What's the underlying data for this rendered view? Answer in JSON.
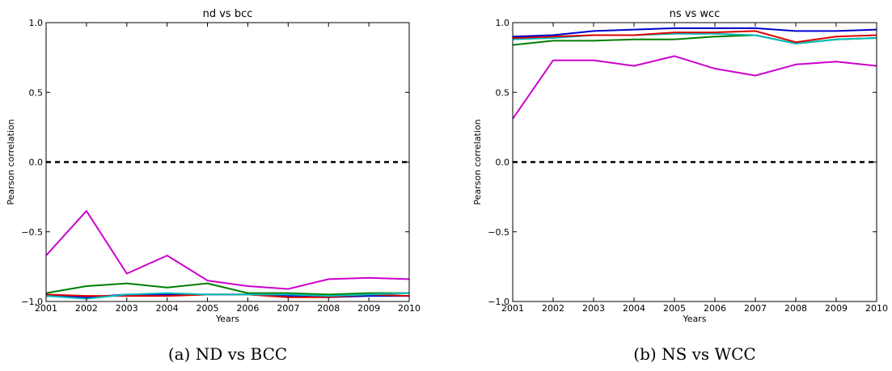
{
  "chart_data": [
    {
      "type": "line",
      "title": "nd vs bcc",
      "xlabel": "Years",
      "ylabel": "Pearson correlation",
      "caption": "(a) ND vs BCC",
      "x": [
        2001,
        2002,
        2003,
        2004,
        2005,
        2006,
        2007,
        2008,
        2009,
        2010
      ],
      "xlim": [
        2001,
        2010
      ],
      "ylim": [
        -1.0,
        1.0
      ],
      "yticks": [
        "1.0",
        "0.5",
        "0.0",
        "−0.5",
        "−1.0"
      ],
      "ytick_values": [
        1.0,
        0.5,
        0.0,
        -0.5,
        -1.0
      ],
      "reference_line": {
        "y": 0.0,
        "style": "dashed",
        "color": "#000000"
      },
      "series": [
        {
          "color": "#cc00cc",
          "values": [
            -0.67,
            -0.35,
            -0.8,
            -0.67,
            -0.85,
            -0.89,
            -0.91,
            -0.84,
            -0.83,
            -0.84
          ]
        },
        {
          "color": "#007f00",
          "values": [
            -0.94,
            -0.89,
            -0.87,
            -0.9,
            -0.87,
            -0.94,
            -0.94,
            -0.95,
            -0.94,
            -0.94
          ]
        },
        {
          "color": "#0000cc",
          "values": [
            -0.96,
            -0.97,
            -0.95,
            -0.95,
            -0.95,
            -0.95,
            -0.96,
            -0.97,
            -0.96,
            -0.96
          ]
        },
        {
          "color": "#dd0000",
          "values": [
            -0.95,
            -0.96,
            -0.96,
            -0.96,
            -0.95,
            -0.95,
            -0.97,
            -0.97,
            -0.95,
            -0.96
          ]
        },
        {
          "color": "#00bbbb",
          "values": [
            -0.96,
            -0.98,
            -0.95,
            -0.94,
            -0.95,
            -0.95,
            -0.95,
            -0.96,
            -0.95,
            -0.94
          ]
        }
      ]
    },
    {
      "type": "line",
      "title": "ns vs wcc",
      "xlabel": "Years",
      "ylabel": "Pearson correlation",
      "caption": "(b) NS vs WCC",
      "x": [
        2001,
        2002,
        2003,
        2004,
        2005,
        2006,
        2007,
        2008,
        2009,
        2010
      ],
      "xlim": [
        2001,
        2010
      ],
      "ylim": [
        -1.0,
        1.0
      ],
      "yticks": [
        "1.0",
        "0.5",
        "0.0",
        "−0.5",
        "−1.0"
      ],
      "ytick_values": [
        1.0,
        0.5,
        0.0,
        -0.5,
        -1.0
      ],
      "reference_line": {
        "y": 0.0,
        "style": "dashed",
        "color": "#000000"
      },
      "series": [
        {
          "color": "#cc00cc",
          "values": [
            0.31,
            0.73,
            0.73,
            0.69,
            0.76,
            0.67,
            0.62,
            0.7,
            0.72,
            0.69
          ]
        },
        {
          "color": "#007f00",
          "values": [
            0.84,
            0.87,
            0.87,
            0.88,
            0.88,
            0.9,
            0.91,
            0.85,
            0.88,
            0.89
          ]
        },
        {
          "color": "#00bbbb",
          "values": [
            0.88,
            0.89,
            0.91,
            0.91,
            0.92,
            0.92,
            0.91,
            0.85,
            0.88,
            0.89
          ]
        },
        {
          "color": "#dd0000",
          "values": [
            0.89,
            0.9,
            0.91,
            0.91,
            0.93,
            0.93,
            0.94,
            0.86,
            0.9,
            0.91
          ]
        },
        {
          "color": "#0000cc",
          "values": [
            0.9,
            0.91,
            0.94,
            0.95,
            0.96,
            0.96,
            0.96,
            0.94,
            0.94,
            0.95
          ]
        }
      ]
    }
  ]
}
